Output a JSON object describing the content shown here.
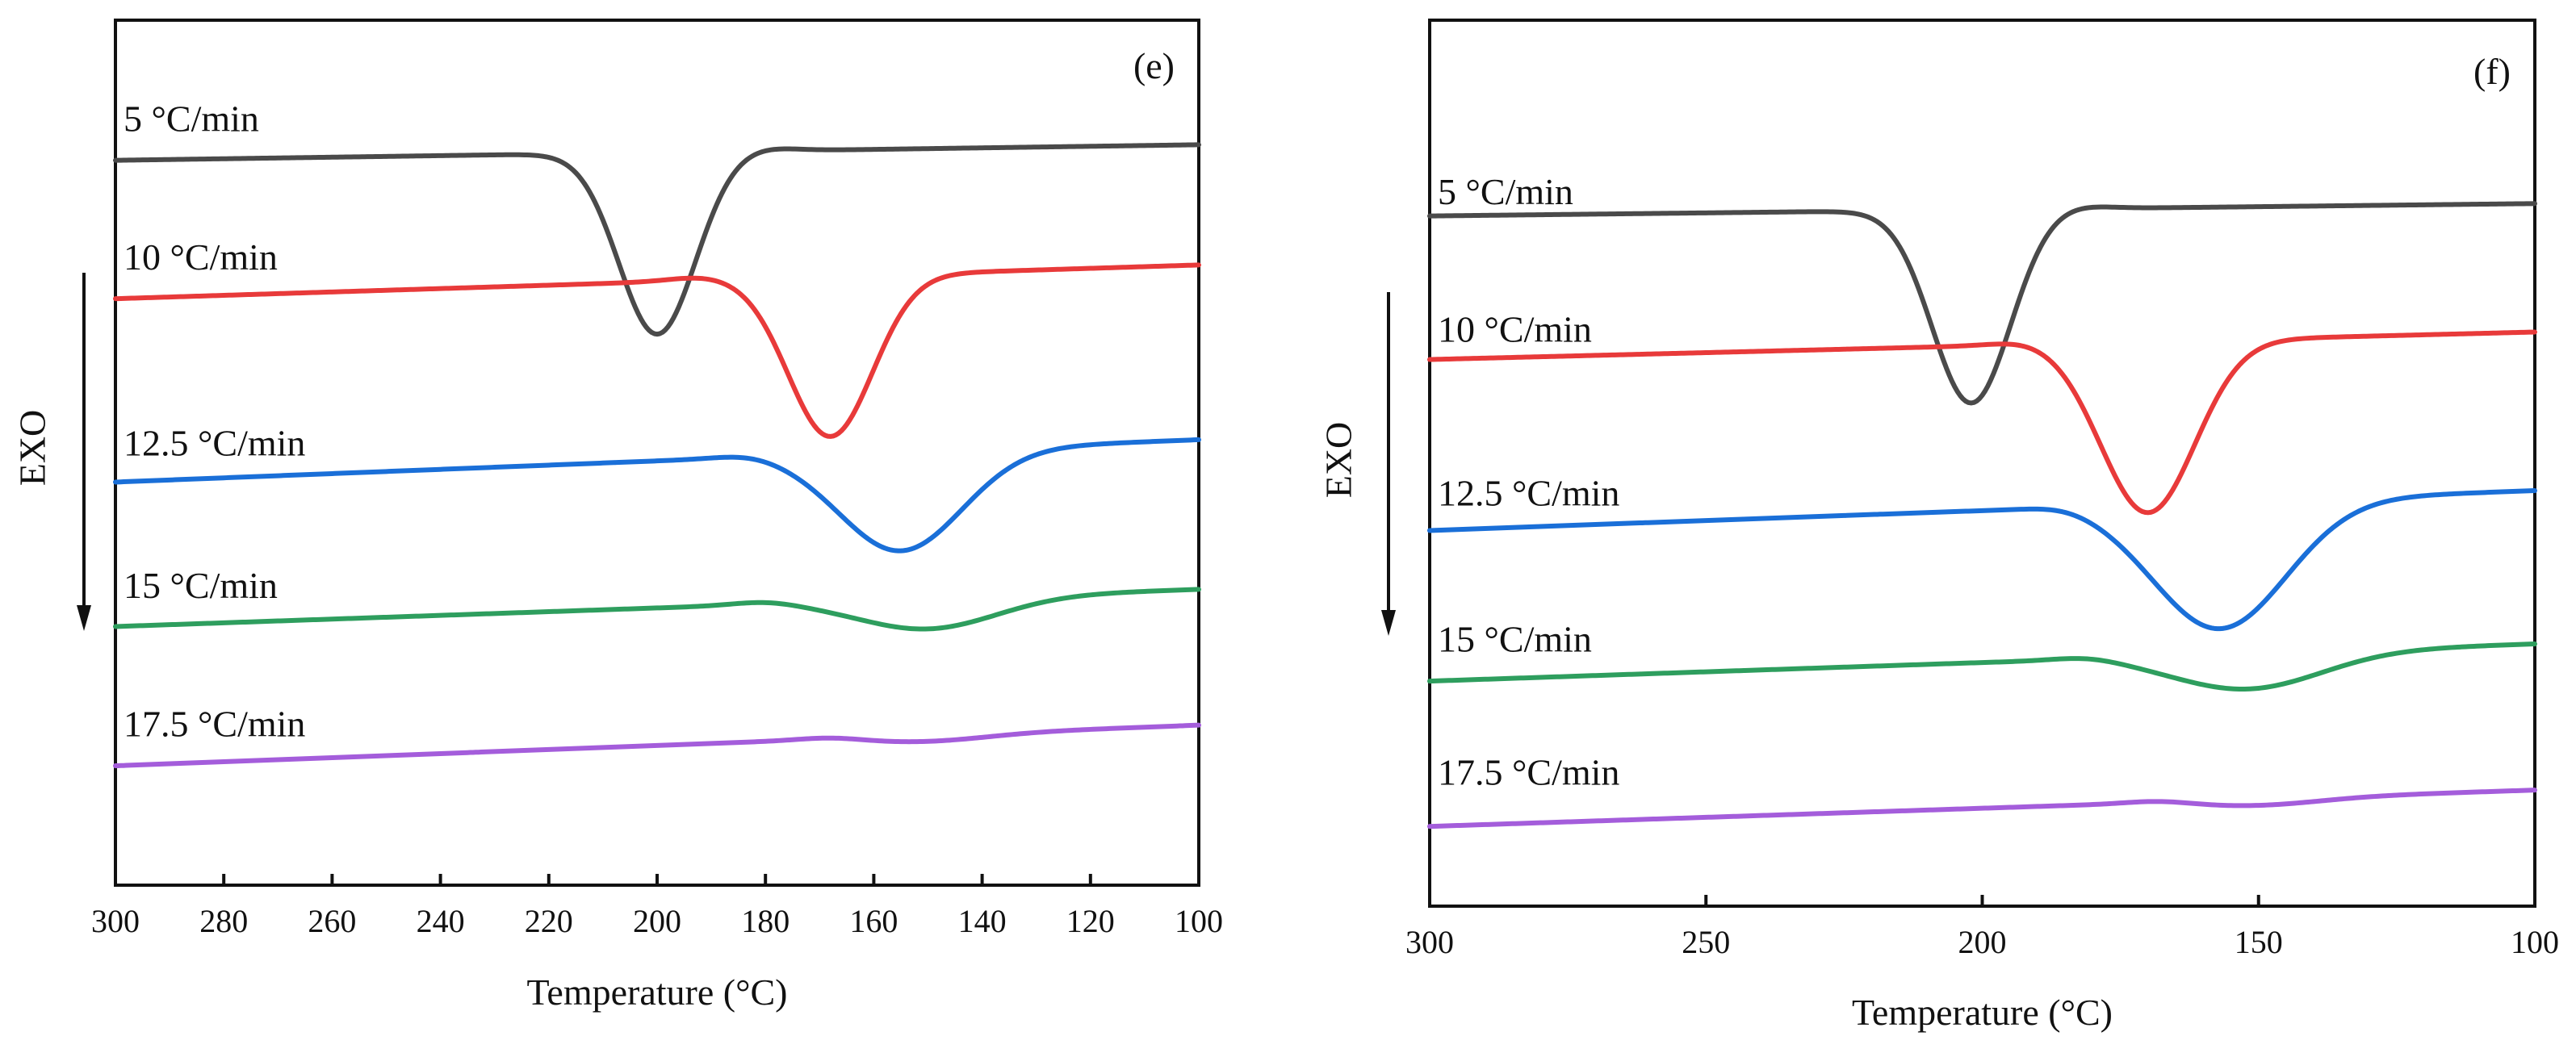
{
  "chart_data": [
    {
      "type": "line",
      "panel_label": "(e)",
      "xlabel": "Temperature (°C)",
      "ylabel": "EXO",
      "xlim": [
        300,
        100
      ],
      "x_reversed": true,
      "ylim": [
        0,
        1
      ],
      "x_ticks": [
        300,
        280,
        260,
        240,
        220,
        200,
        180,
        160,
        140,
        120,
        100
      ],
      "x_tick_labels": [
        "300",
        "280",
        "260",
        "240",
        "220",
        "200",
        "180",
        "160",
        "140",
        "120",
        "100"
      ],
      "grid": false,
      "legend": "inline labels above each curve",
      "arrow": "downward, indicating exothermic direction",
      "series": [
        {
          "name": "5 °C/min",
          "color": "#4a4a4a",
          "baseline_left": 0.838,
          "baseline_right": 0.856,
          "peak_T": 200,
          "peak_depth": 0.21,
          "width": 10,
          "shoulder_T": 181,
          "shoulder_drop": 0.004,
          "label_y": 0.885
        },
        {
          "name": "10 °C/min",
          "color": "#e83a3a",
          "baseline_left": 0.678,
          "baseline_right": 0.717,
          "peak_T": 168,
          "peak_depth": 0.185,
          "width": 11,
          "shoulder_T": 192,
          "shoulder_drop": 0.004,
          "label_y": 0.725
        },
        {
          "name": "12.5 °C/min",
          "color": "#1a6fd8",
          "baseline_left": 0.466,
          "baseline_right": 0.515,
          "peak_T": 155,
          "peak_depth": 0.115,
          "width": 16,
          "shoulder_T": 183,
          "shoulder_drop": 0.004,
          "label_y": 0.51
        },
        {
          "name": "15 °C/min",
          "color": "#2e9e5e",
          "baseline_left": 0.299,
          "baseline_right": 0.342,
          "peak_T": 150,
          "peak_depth": 0.035,
          "width": 18,
          "shoulder_T": 180,
          "shoulder_drop": 0.004,
          "label_y": 0.345
        },
        {
          "name": "17.5 °C/min",
          "color": "#a45ddb",
          "baseline_left": 0.138,
          "baseline_right": 0.185,
          "peak_T": 150,
          "peak_depth": 0.007,
          "width": 16,
          "shoulder_T": 168,
          "shoulder_drop": 0.003,
          "label_y": 0.185
        }
      ]
    },
    {
      "type": "line",
      "panel_label": "(f)",
      "xlabel": "Temperature (°C)",
      "ylabel": "EXO",
      "xlim": [
        300,
        100
      ],
      "x_reversed": true,
      "ylim": [
        0,
        1
      ],
      "x_ticks": [
        300,
        250,
        200,
        150,
        100
      ],
      "x_tick_labels": [
        "300",
        "250",
        "200",
        "150",
        "100"
      ],
      "grid": false,
      "legend": "inline labels above each curve",
      "arrow": "downward, indicating exothermic direction",
      "series": [
        {
          "name": "5 °C/min",
          "color": "#4a4a4a",
          "baseline_left": 0.779,
          "baseline_right": 0.793,
          "peak_T": 202,
          "peak_depth": 0.218,
          "width": 10,
          "shoulder_T": 184,
          "shoulder_drop": 0.004,
          "label_y": 0.805
        },
        {
          "name": "10 °C/min",
          "color": "#e83a3a",
          "baseline_left": 0.617,
          "baseline_right": 0.648,
          "peak_T": 170,
          "peak_depth": 0.193,
          "width": 12,
          "shoulder_T": 192,
          "shoulder_drop": 0.004,
          "label_y": 0.65
        },
        {
          "name": "12.5 °C/min",
          "color": "#1a6fd8",
          "baseline_left": 0.424,
          "baseline_right": 0.469,
          "peak_T": 157,
          "peak_depth": 0.143,
          "width": 17,
          "shoulder_T": 185,
          "shoulder_drop": 0.004,
          "label_y": 0.465
        },
        {
          "name": "15 °C/min",
          "color": "#2e9e5e",
          "baseline_left": 0.254,
          "baseline_right": 0.296,
          "peak_T": 152,
          "peak_depth": 0.04,
          "width": 19,
          "shoulder_T": 181,
          "shoulder_drop": 0.004,
          "label_y": 0.3
        },
        {
          "name": "17.5 °C/min",
          "color": "#a45ddb",
          "baseline_left": 0.09,
          "baseline_right": 0.131,
          "peak_T": 150,
          "peak_depth": 0.007,
          "width": 16,
          "shoulder_T": 168,
          "shoulder_drop": 0.003,
          "label_y": 0.15
        }
      ]
    }
  ]
}
